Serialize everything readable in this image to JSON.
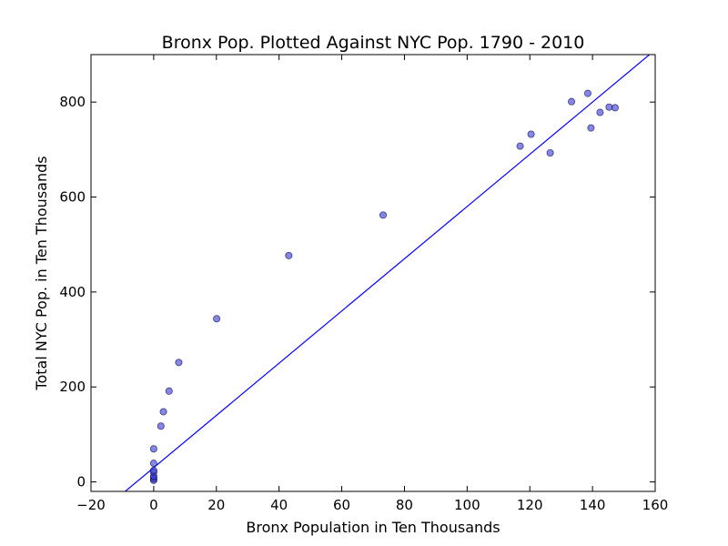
{
  "chart_data": {
    "type": "scatter",
    "title": "Bronx Pop. Plotted Against NYC Pop. 1790 - 2010",
    "xlabel": "Bronx Population in Ten Thousands",
    "ylabel": "Total NYC Pop. in Ten Thousands",
    "xlim": [
      -20,
      160
    ],
    "ylim": [
      -20,
      900
    ],
    "xticks": [
      -20,
      0,
      20,
      40,
      60,
      80,
      100,
      120,
      140,
      160
    ],
    "yticks": [
      0,
      200,
      400,
      600,
      800
    ],
    "grid": false,
    "series": [
      {
        "type": "scatter",
        "color": "#3b3bd6",
        "points": [
          {
            "x": 0.0,
            "y": 3.3
          },
          {
            "x": 0.0,
            "y": 6.0
          },
          {
            "x": 0.0,
            "y": 9.6
          },
          {
            "x": 0.0,
            "y": 12.3
          },
          {
            "x": 0.0,
            "y": 20.3
          },
          {
            "x": 0.0,
            "y": 24.2
          },
          {
            "x": 0.0,
            "y": 39.1
          },
          {
            "x": 0.0,
            "y": 69.6
          },
          {
            "x": 2.3,
            "y": 117.5
          },
          {
            "x": 3.1,
            "y": 147.8
          },
          {
            "x": 4.9,
            "y": 191.2
          },
          {
            "x": 8.0,
            "y": 251.5
          },
          {
            "x": 20.1,
            "y": 343.7
          },
          {
            "x": 43.1,
            "y": 476.7
          },
          {
            "x": 73.2,
            "y": 562.0
          },
          {
            "x": 126.5,
            "y": 693.0
          },
          {
            "x": 139.5,
            "y": 745.5
          },
          {
            "x": 142.4,
            "y": 778.2
          },
          {
            "x": 138.5,
            "y": 818.4
          },
          {
            "x": 133.3,
            "y": 801.0
          },
          {
            "x": 116.9,
            "y": 707.2
          },
          {
            "x": 120.4,
            "y": 732.3
          },
          {
            "x": 145.3,
            "y": 789.4
          },
          {
            "x": 147.2,
            "y": 788.1
          }
        ]
      },
      {
        "type": "line",
        "color": "#0000ff",
        "points": [
          {
            "x": -20,
            "y": -80
          },
          {
            "x": 160,
            "y": 910
          }
        ]
      }
    ]
  }
}
